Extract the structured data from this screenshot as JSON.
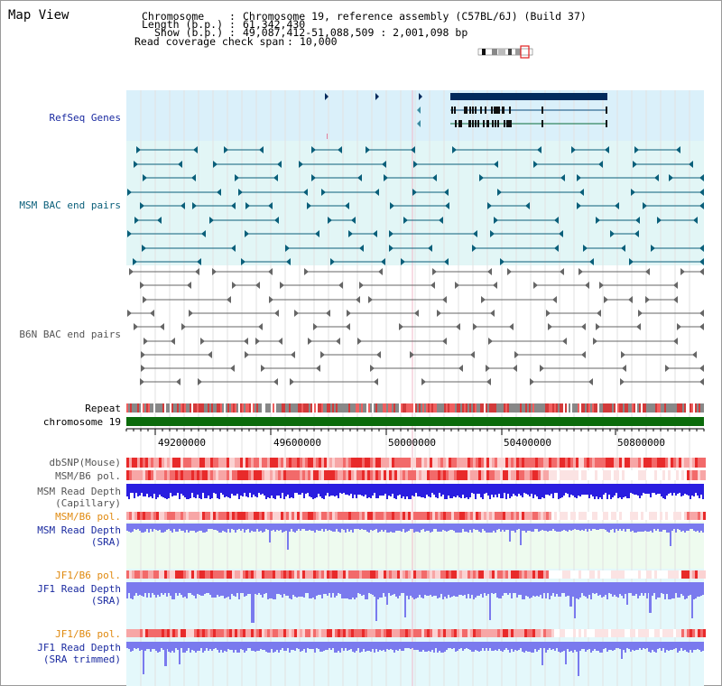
{
  "title": "Map View",
  "header": {
    "chromosome_key": "Chromosome",
    "chromosome_val": "Chromosome 19, reference assembly (C57BL/6J) (Build 37)",
    "length_key": "Length (b.p.)",
    "length_val": "61,342,430",
    "show_key": "Show (b.p.)",
    "show_val": "49,087,412-51,088,509 : 2,001,098 bp",
    "coverage_key": "Read coverage check span",
    "coverage_val": "10,000"
  },
  "tracks": {
    "refseq": "RefSeq Genes",
    "msm_bac": "MSM BAC end pairs",
    "b6n_bac": "B6N BAC end pairs",
    "repeat": "Repeat",
    "chromosome": "chromosome 19",
    "dbsnp": "dbSNP(Mouse)",
    "msm_b6_pol_1": "MSM/B6 pol.",
    "msm_depth_cap_1": "MSM Read Depth",
    "msm_depth_cap_2": "(Capillary)",
    "msm_b6_pol_2": "MSM/B6 pol.",
    "msm_depth_sra_1": "MSM Read Depth",
    "msm_depth_sra_2": "(SRA)",
    "jf1_b6_pol_1": "JF1/B6 pol.",
    "jf1_depth_sra_1": "JF1 Read Depth",
    "jf1_depth_sra_2": "(SRA)",
    "jf1_b6_pol_2": "JF1/B6 pol.",
    "jf1_depth_trim_1": "JF1 Read Depth",
    "jf1_depth_trim_2": "(SRA trimmed)"
  },
  "axis": {
    "ticks": [
      "49200000",
      "49600000",
      "50000000",
      "50400000",
      "50800000"
    ]
  },
  "colors": {
    "refseq_band": "#daf0fa",
    "msm_band": "#e2f6f6",
    "gene": "#022a5c",
    "msm_feature": "#0a5f7a",
    "b6n_feature": "#666666",
    "chromosome": "#0b6b0b",
    "label_blue": "#1a2aa0",
    "label_teal": "#0a5f7a",
    "label_orange": "#e08a10",
    "depth_blue": "#2a1ee0",
    "depth_light": "#7a7aee"
  }
}
